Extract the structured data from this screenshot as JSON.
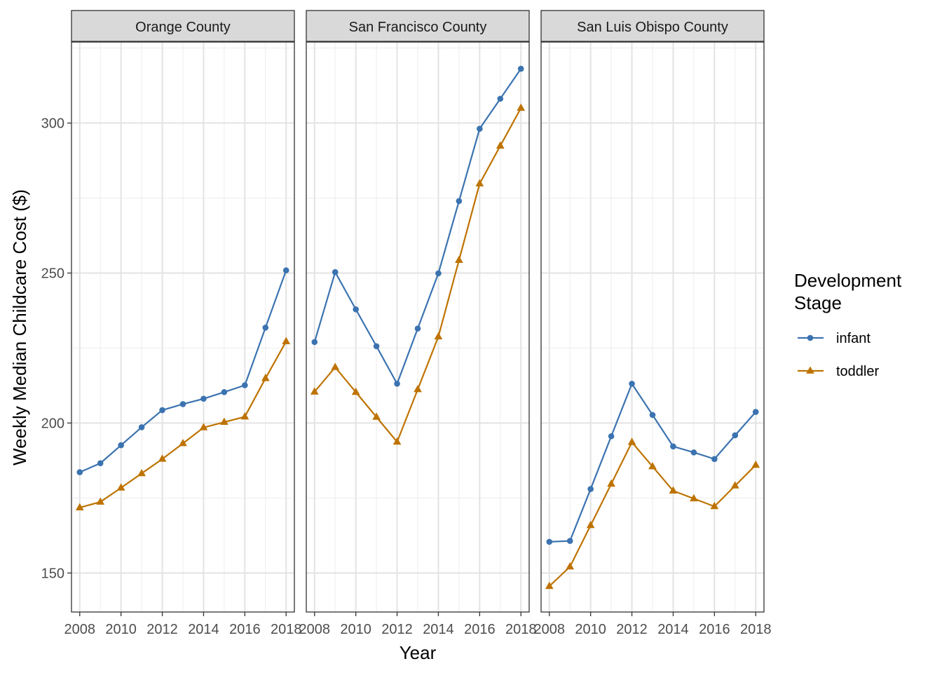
{
  "chart_data": {
    "type": "line",
    "xlabel": "Year",
    "ylabel": "Weekly Median Childcare Cost ($)",
    "xlim": [
      2007.6,
      2018.4
    ],
    "ylim": [
      137,
      327
    ],
    "x_ticks": [
      2008,
      2010,
      2012,
      2014,
      2016,
      2018
    ],
    "x_tick_labels": [
      "2008",
      "2010",
      "2012",
      "2014",
      "2016",
      "2018"
    ],
    "y_ticks": [
      150,
      200,
      250,
      300
    ],
    "y_tick_labels": [
      "150",
      "200",
      "250",
      "300"
    ],
    "y_minor_ticks": [
      175,
      225,
      275,
      325
    ],
    "grid": true,
    "legend": {
      "title": "Development Stage",
      "title_lines": [
        "Development",
        "Stage"
      ],
      "placement": "right",
      "entries": [
        {
          "label": "infant",
          "color": "#3B73B0",
          "shape": "circle"
        },
        {
          "label": "toddler",
          "color": "#BE7300",
          "shape": "triangle"
        }
      ]
    },
    "x": [
      2008,
      2009,
      2010,
      2011,
      2012,
      2013,
      2014,
      2015,
      2016,
      2017,
      2018
    ],
    "panels": [
      {
        "title": "Orange County",
        "series": [
          {
            "name": "infant",
            "values": [
              183.6,
              186.6,
              192.6,
              198.6,
              204.3,
              206.3,
              208.1,
              210.3,
              212.6,
              231.8,
              250.9
            ]
          },
          {
            "name": "toddler",
            "values": [
              171.8,
              173.7,
              178.4,
              183.2,
              188.0,
              193.2,
              198.5,
              200.3,
              202.1,
              214.9,
              227.2
            ]
          }
        ]
      },
      {
        "title": "San Francisco County",
        "series": [
          {
            "name": "infant",
            "values": [
              227.0,
              250.3,
              237.9,
              225.6,
              213.1,
              231.5,
              249.9,
              274.0,
              298.1,
              308.1,
              318.1
            ]
          },
          {
            "name": "toddler",
            "values": [
              210.4,
              218.6,
              210.3,
              202.0,
              193.7,
              211.2,
              228.8,
              254.3,
              279.8,
              292.4,
              305.0
            ]
          }
        ]
      },
      {
        "title": "San Luis Obispo County",
        "series": [
          {
            "name": "infant",
            "values": [
              160.4,
              160.7,
              178.0,
              195.6,
              213.1,
              202.7,
              192.2,
              190.2,
              188.0,
              195.9,
              203.7
            ]
          },
          {
            "name": "toddler",
            "values": [
              145.6,
              152.1,
              165.9,
              179.7,
              193.6,
              185.5,
              177.4,
              174.8,
              172.2,
              179.1,
              186.0
            ]
          }
        ]
      }
    ]
  }
}
